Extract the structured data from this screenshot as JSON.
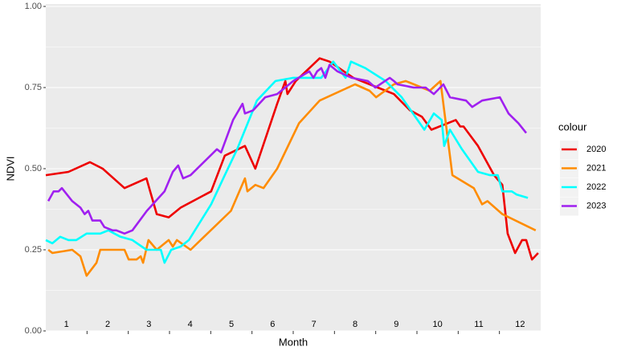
{
  "chart_data": {
    "type": "line",
    "x_label": "Month",
    "y_label": "NDVI",
    "legend_title": "colour",
    "xlim": [
      0.5,
      12.5
    ],
    "ylim": [
      0,
      1
    ],
    "xticks": [
      1,
      2,
      3,
      4,
      5,
      6,
      7,
      8,
      9,
      10,
      11,
      12
    ],
    "minor_xticks": [
      1.5,
      2.5,
      3.5,
      4.5,
      5.5,
      6.5,
      7.5,
      8.5,
      9.5,
      10.5,
      11.5
    ],
    "yticks": [
      {
        "value": 0,
        "label": "0.00"
      },
      {
        "value": 0.25,
        "label": "0.25"
      },
      {
        "value": 0.5,
        "label": "0.50"
      },
      {
        "value": 0.75,
        "label": "0.75"
      },
      {
        "value": 1,
        "label": "1.00"
      }
    ],
    "minor_yticks": [
      0.125,
      0.375,
      0.625,
      0.875
    ],
    "grid": true,
    "legend_position": "right",
    "series": [
      {
        "name": "2020",
        "color": "#ee0000",
        "x": [
          0.5,
          1.05,
          1.57,
          1.88,
          2.41,
          2.94,
          3.19,
          3.48,
          3.77,
          4.51,
          4.84,
          5.33,
          5.58,
          6.11,
          6.31,
          6.36,
          6.56,
          7.14,
          7.38,
          7.96,
          8.55,
          8.94,
          9.33,
          9.62,
          9.85,
          10.44,
          10.55,
          10.63,
          10.98,
          11.37,
          11.57,
          11.7,
          11.88,
          12.05,
          12.15,
          12.29,
          12.44
        ],
        "values": [
          0.48,
          0.49,
          0.52,
          0.5,
          0.44,
          0.47,
          0.36,
          0.35,
          0.38,
          0.43,
          0.54,
          0.57,
          0.5,
          0.7,
          0.77,
          0.73,
          0.77,
          0.84,
          0.83,
          0.78,
          0.75,
          0.73,
          0.68,
          0.66,
          0.62,
          0.65,
          0.63,
          0.63,
          0.57,
          0.48,
          0.45,
          0.3,
          0.24,
          0.28,
          0.28,
          0.22,
          0.24
        ]
      },
      {
        "name": "2021",
        "color": "#ff8c00",
        "x": [
          0.56,
          0.66,
          1.14,
          1.34,
          1.49,
          1.73,
          1.82,
          2.02,
          2.41,
          2.51,
          2.7,
          2.8,
          2.86,
          2.99,
          3.19,
          3.48,
          3.58,
          3.68,
          4.01,
          4.99,
          5.33,
          5.39,
          5.58,
          5.78,
          6.11,
          6.64,
          7.14,
          8.0,
          8.35,
          8.51,
          8.94,
          9.23,
          9.81,
          10.07,
          10.36,
          10.88,
          11.08,
          11.21,
          11.57,
          12.38
        ],
        "values": [
          0.25,
          0.24,
          0.25,
          0.23,
          0.17,
          0.21,
          0.25,
          0.25,
          0.25,
          0.22,
          0.22,
          0.23,
          0.21,
          0.28,
          0.25,
          0.28,
          0.26,
          0.28,
          0.25,
          0.37,
          0.47,
          0.43,
          0.45,
          0.44,
          0.5,
          0.64,
          0.71,
          0.76,
          0.74,
          0.72,
          0.76,
          0.77,
          0.74,
          0.77,
          0.48,
          0.44,
          0.39,
          0.4,
          0.36,
          0.31
        ]
      },
      {
        "name": "2022",
        "color": "#00ffff",
        "x": [
          0.5,
          0.66,
          0.85,
          1.05,
          1.24,
          1.49,
          1.82,
          2.02,
          2.31,
          2.6,
          2.94,
          3.09,
          3.29,
          3.38,
          3.54,
          3.77,
          3.97,
          4.51,
          4.84,
          5.14,
          5.62,
          6.07,
          6.5,
          7.18,
          7.47,
          7.77,
          7.9,
          8.25,
          8.74,
          9.13,
          9.68,
          9.91,
          10.1,
          10.16,
          10.3,
          10.59,
          10.98,
          11.27,
          11.46,
          11.57,
          11.8,
          11.92,
          12.19
        ],
        "values": [
          0.28,
          0.27,
          0.29,
          0.28,
          0.28,
          0.3,
          0.3,
          0.31,
          0.29,
          0.28,
          0.25,
          0.25,
          0.25,
          0.21,
          0.25,
          0.26,
          0.28,
          0.39,
          0.48,
          0.56,
          0.71,
          0.77,
          0.78,
          0.78,
          0.83,
          0.78,
          0.83,
          0.81,
          0.77,
          0.72,
          0.62,
          0.67,
          0.65,
          0.57,
          0.62,
          0.56,
          0.49,
          0.48,
          0.48,
          0.43,
          0.43,
          0.42,
          0.41
        ]
      },
      {
        "name": "2023",
        "color": "#a020f0",
        "x": [
          0.56,
          0.69,
          0.81,
          0.89,
          1.14,
          1.34,
          1.44,
          1.53,
          1.63,
          1.82,
          1.92,
          2.12,
          2.21,
          2.41,
          2.6,
          2.95,
          3.38,
          3.58,
          3.71,
          3.83,
          4.01,
          4.65,
          4.75,
          5.04,
          5.27,
          5.33,
          5.53,
          5.82,
          6.11,
          6.5,
          6.89,
          6.99,
          7.08,
          7.18,
          7.28,
          7.38,
          7.57,
          7.92,
          8.31,
          8.49,
          8.84,
          8.94,
          9.03,
          9.42,
          9.71,
          9.91,
          10.14,
          10.3,
          10.69,
          10.84,
          11.08,
          11.51,
          11.72,
          11.96,
          12.15
        ],
        "values": [
          0.4,
          0.43,
          0.43,
          0.44,
          0.4,
          0.38,
          0.36,
          0.37,
          0.34,
          0.34,
          0.32,
          0.31,
          0.31,
          0.3,
          0.31,
          0.37,
          0.43,
          0.49,
          0.51,
          0.47,
          0.48,
          0.56,
          0.55,
          0.65,
          0.7,
          0.67,
          0.68,
          0.72,
          0.73,
          0.77,
          0.8,
          0.78,
          0.8,
          0.81,
          0.78,
          0.82,
          0.8,
          0.78,
          0.77,
          0.75,
          0.78,
          0.77,
          0.76,
          0.75,
          0.75,
          0.73,
          0.76,
          0.72,
          0.71,
          0.69,
          0.71,
          0.72,
          0.67,
          0.64,
          0.61
        ]
      }
    ]
  }
}
